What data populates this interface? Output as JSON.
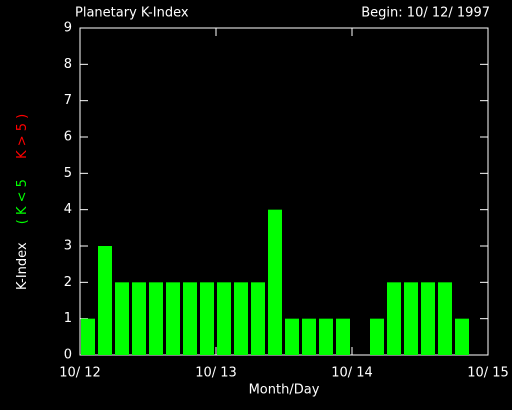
{
  "chart_data": {
    "type": "bar",
    "title": "Planetary K-Index",
    "subtitle": "Begin: 10/ 12/ 1997",
    "x_label": "Month/Day",
    "y_label": "K-Index",
    "y_label_low": "( K < 5",
    "y_label_high": "K > 5 )",
    "categories": [
      null,
      null,
      null,
      null,
      null,
      null,
      null,
      null,
      null,
      null,
      null,
      null,
      null,
      null,
      null,
      null,
      null,
      null,
      null,
      null,
      null,
      null,
      null,
      null
    ],
    "values": [
      1,
      3,
      2,
      2,
      2,
      2,
      2,
      2,
      2,
      2,
      2,
      4,
      1,
      1,
      1,
      1,
      null,
      1,
      2,
      2,
      2,
      2,
      1,
      null
    ],
    "color": "#00ff00",
    "high_color": "#ff0000",
    "high_threshold": 5,
    "xlim": [
      0,
      3
    ],
    "xticks": [
      {
        "value": 0,
        "label": "10/ 12"
      },
      {
        "value": 1,
        "label": "10/ 13"
      },
      {
        "value": 2,
        "label": "10/ 14"
      },
      {
        "value": 3,
        "label": "10/ 15"
      }
    ],
    "ylim": [
      0,
      9
    ],
    "yticks": [
      0,
      1,
      2,
      3,
      4,
      5,
      6,
      7,
      8,
      9
    ]
  }
}
